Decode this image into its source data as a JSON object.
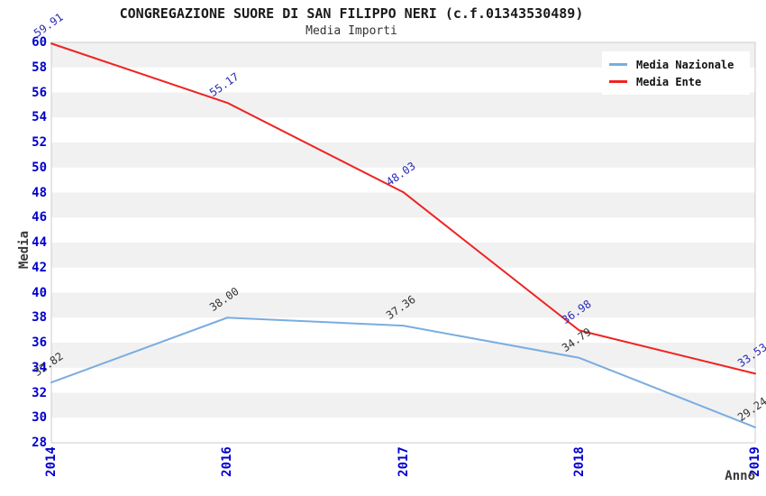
{
  "title": "CONGREGAZIONE SUORE DI SAN FILIPPO NERI (c.f.01343530489)",
  "subtitle": "Media Importi",
  "legend": {
    "position": "top-right",
    "items": [
      {
        "label": "Media Nazionale",
        "color": "#79ade0"
      },
      {
        "label": "Media Ente",
        "color": "#f02222"
      }
    ]
  },
  "colors": {
    "axis_tick": "#0000cc",
    "axis_label": "#3a3a3a",
    "band": "#f1f1f1",
    "border": "#cccccc",
    "series_nazionale": "#79ade0",
    "series_ente": "#f02222",
    "point_label_nazionale": "#333333",
    "point_label_ente": "#2929b8"
  },
  "chart_data": {
    "type": "line",
    "title": "CONGREGAZIONE SUORE DI SAN FILIPPO NERI (c.f.01343530489)",
    "subtitle": "Media Importi",
    "xlabel": "Anno",
    "ylabel": "Media",
    "categories": [
      "2014",
      "2016",
      "2017",
      "2018",
      "2019"
    ],
    "series": [
      {
        "name": "Media Nazionale",
        "color": "#79ade0",
        "values": [
          32.82,
          38.0,
          37.36,
          34.79,
          29.24
        ],
        "point_labels": [
          "32.82",
          "38.00",
          "37.36",
          "34.79",
          "29.24"
        ],
        "label_color": "#333333"
      },
      {
        "name": "Media Ente",
        "color": "#f02222",
        "values": [
          59.91,
          55.17,
          48.03,
          36.98,
          33.53
        ],
        "point_labels": [
          "59.91",
          "55.17",
          "48.03",
          "36.98",
          "33.53"
        ],
        "label_color": "#2929b8"
      }
    ],
    "ylim": [
      28,
      60
    ],
    "ytick_step": 2,
    "grid": "horizontal-bands",
    "legend_position": "top-right"
  }
}
